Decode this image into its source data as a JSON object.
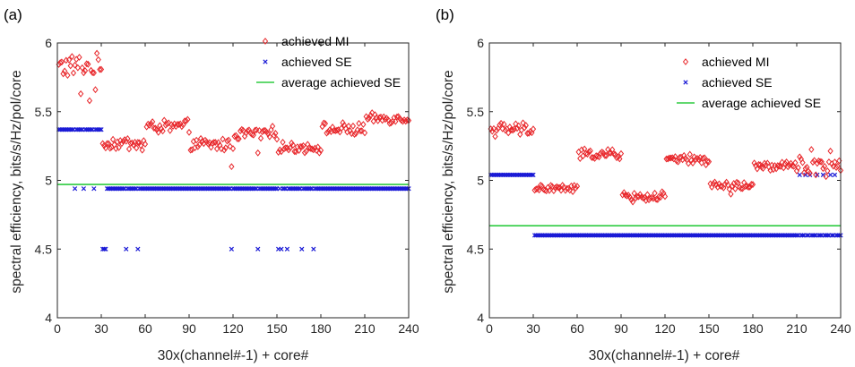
{
  "chart_data": [
    {
      "type": "scatter",
      "panel_label": "(a)",
      "xlabel": "30x(channel#-1) + core#",
      "ylabel": "spectral efficiency, bits/s/Hz/pol/core",
      "xlim": [
        0,
        240
      ],
      "ylim": [
        4,
        6
      ],
      "xticks": [
        "0",
        "30",
        "60",
        "90",
        "120",
        "150",
        "180",
        "210",
        "240"
      ],
      "yticks": [
        "4",
        "4.5",
        "5",
        "5.5",
        "6"
      ],
      "grid": false,
      "legend_position": "top-right",
      "colors": {
        "mi": "#e8262a",
        "se": "#1a1ad6",
        "avg": "#2ecc40"
      },
      "series": [
        {
          "name": "achieved MI",
          "marker": "diamond",
          "segments": [
            {
              "x": [
                1,
                30
              ],
              "mean": 5.83,
              "spread": 0.07,
              "outliers": [
                [
                  16,
                  5.63
                ],
                [
                  22,
                  5.58
                ],
                [
                  26,
                  5.66
                ]
              ]
            },
            {
              "x": [
                31,
                60
              ],
              "mean": 5.27,
              "spread": 0.04,
              "outliers": [
                [
                  58,
                  5.22
                ]
              ]
            },
            {
              "x": [
                61,
                90
              ],
              "mean": 5.39,
              "spread": 0.04,
              "outliers": []
            },
            {
              "x": [
                91,
                120
              ],
              "mean": 5.26,
              "spread": 0.04,
              "outliers": [
                [
                  119,
                  5.1
                ]
              ]
            },
            {
              "x": [
                121,
                150
              ],
              "mean": 5.34,
              "spread": 0.04,
              "outliers": [
                [
                  137,
                  5.2
                ]
              ]
            },
            {
              "x": [
                151,
                180
              ],
              "mean": 5.24,
              "spread": 0.03,
              "outliers": []
            },
            {
              "x": [
                181,
                210
              ],
              "mean": 5.37,
              "spread": 0.04,
              "outliers": []
            },
            {
              "x": [
                211,
                240
              ],
              "mean": 5.45,
              "spread": 0.03,
              "outliers": []
            }
          ]
        },
        {
          "name": "achieved SE",
          "marker": "x",
          "segments": [
            {
              "x": [
                1,
                30
              ],
              "value": 5.37,
              "exceptions": [
                [
                  12,
                  4.94
                ],
                [
                  18,
                  4.94
                ],
                [
                  25,
                  4.94
                ]
              ]
            },
            {
              "x": [
                31,
                240
              ],
              "value": 4.94,
              "exceptions": [
                [
                  31,
                  4.5
                ],
                [
                  32,
                  4.5
                ],
                [
                  33,
                  4.5
                ],
                [
                  47,
                  4.5
                ],
                [
                  55,
                  4.5
                ],
                [
                  119,
                  4.5
                ],
                [
                  137,
                  4.5
                ],
                [
                  151,
                  4.5
                ],
                [
                  153,
                  4.5
                ],
                [
                  157,
                  4.5
                ],
                [
                  167,
                  4.5
                ],
                [
                  175,
                  4.5
                ]
              ]
            }
          ]
        },
        {
          "name": "average achieved SE",
          "marker": "line",
          "value": 4.97
        }
      ]
    },
    {
      "type": "scatter",
      "panel_label": "(b)",
      "xlabel": "30x(channel#-1) + core#",
      "ylabel": "spectral efficiency, bits/s/Hz/pol/core",
      "xlim": [
        0,
        240
      ],
      "ylim": [
        4,
        6
      ],
      "xticks": [
        "0",
        "30",
        "60",
        "90",
        "120",
        "150",
        "180",
        "210",
        "240"
      ],
      "yticks": [
        "4",
        "4.5",
        "5",
        "5.5",
        "6"
      ],
      "grid": false,
      "legend_position": "top-right",
      "colors": {
        "mi": "#e8262a",
        "se": "#1a1ad6",
        "avg": "#2ecc40"
      },
      "series": [
        {
          "name": "achieved MI",
          "marker": "diamond",
          "segments": [
            {
              "x": [
                1,
                30
              ],
              "mean": 5.37,
              "spread": 0.04,
              "outliers": []
            },
            {
              "x": [
                31,
                60
              ],
              "mean": 4.94,
              "spread": 0.03,
              "outliers": []
            },
            {
              "x": [
                61,
                90
              ],
              "mean": 5.19,
              "spread": 0.03,
              "outliers": []
            },
            {
              "x": [
                91,
                120
              ],
              "mean": 4.88,
              "spread": 0.03,
              "outliers": []
            },
            {
              "x": [
                121,
                150
              ],
              "mean": 5.15,
              "spread": 0.03,
              "outliers": []
            },
            {
              "x": [
                151,
                180
              ],
              "mean": 4.96,
              "spread": 0.03,
              "outliers": [
                [
                  165,
                  4.9
                ]
              ]
            },
            {
              "x": [
                181,
                210
              ],
              "mean": 5.1,
              "spread": 0.03,
              "outliers": []
            },
            {
              "x": [
                211,
                240
              ],
              "mean": 5.12,
              "spread": 0.08,
              "outliers": []
            }
          ]
        },
        {
          "name": "achieved SE",
          "marker": "x",
          "segments": [
            {
              "x": [
                1,
                30
              ],
              "value": 5.04,
              "exceptions": []
            },
            {
              "x": [
                31,
                240
              ],
              "value": 4.6,
              "exceptions": [
                [
                  212,
                  5.04
                ],
                [
                  216,
                  5.04
                ],
                [
                  219,
                  5.04
                ],
                [
                  224,
                  5.04
                ],
                [
                  228,
                  5.04
                ],
                [
                  233,
                  5.04
                ],
                [
                  236,
                  5.04
                ]
              ]
            }
          ]
        },
        {
          "name": "average achieved SE",
          "marker": "line",
          "value": 4.67
        }
      ]
    }
  ]
}
